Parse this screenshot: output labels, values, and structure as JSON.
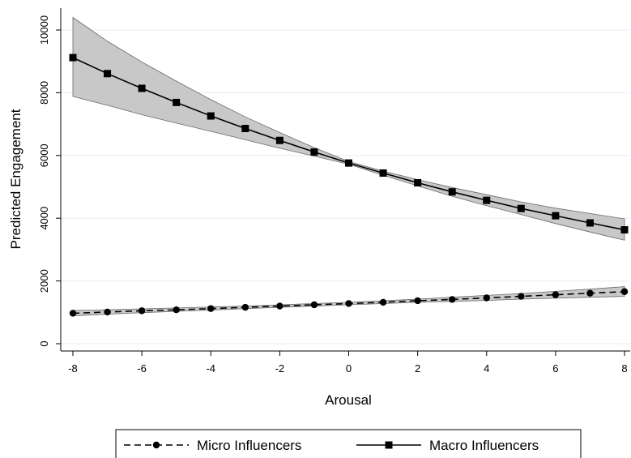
{
  "chart_data": {
    "type": "line",
    "title": "",
    "xlabel": "Arousal",
    "ylabel": "Predicted Engagement",
    "xlim": [
      -8,
      8
    ],
    "ylim": [
      0,
      10000
    ],
    "xticks": [
      -8,
      -6,
      -4,
      -2,
      0,
      2,
      4,
      6,
      8
    ],
    "yticks": [
      0,
      2000,
      4000,
      6000,
      8000,
      10000
    ],
    "grid": true,
    "legend_position": "bottom",
    "x": [
      -8,
      -7,
      -6,
      -5,
      -4,
      -3,
      -2,
      -1,
      0,
      1,
      2,
      3,
      4,
      5,
      6,
      7,
      8
    ],
    "series": [
      {
        "name": "Micro Influencers",
        "line_style": "dashed",
        "marker": "circle",
        "color": "#000000",
        "values": [
          970,
          1010,
          1050,
          1080,
          1120,
          1160,
          1200,
          1240,
          1280,
          1320,
          1370,
          1410,
          1460,
          1510,
          1560,
          1610,
          1660
        ],
        "ci_lower": [
          890,
          940,
          990,
          1030,
          1070,
          1120,
          1160,
          1200,
          1240,
          1280,
          1320,
          1350,
          1380,
          1420,
          1450,
          1480,
          1510
        ],
        "ci_upper": [
          1060,
          1080,
          1110,
          1140,
          1170,
          1200,
          1240,
          1280,
          1320,
          1370,
          1420,
          1480,
          1540,
          1600,
          1670,
          1740,
          1820
        ]
      },
      {
        "name": "Macro Influencers",
        "line_style": "solid",
        "marker": "square",
        "color": "#000000",
        "values": [
          9120,
          8610,
          8140,
          7690,
          7260,
          6860,
          6480,
          6110,
          5760,
          5440,
          5130,
          4840,
          4570,
          4310,
          4080,
          3850,
          3630
        ],
        "ci_lower": [
          7880,
          7600,
          7300,
          7030,
          6770,
          6500,
          6230,
          5980,
          5720,
          5370,
          5030,
          4700,
          4400,
          4120,
          3830,
          3560,
          3300
        ],
        "ci_upper": [
          10400,
          9640,
          8980,
          8370,
          7780,
          7230,
          6730,
          6250,
          5810,
          5500,
          5230,
          4980,
          4750,
          4520,
          4320,
          4150,
          3980
        ]
      }
    ],
    "band_color": "#c8c8c8"
  }
}
